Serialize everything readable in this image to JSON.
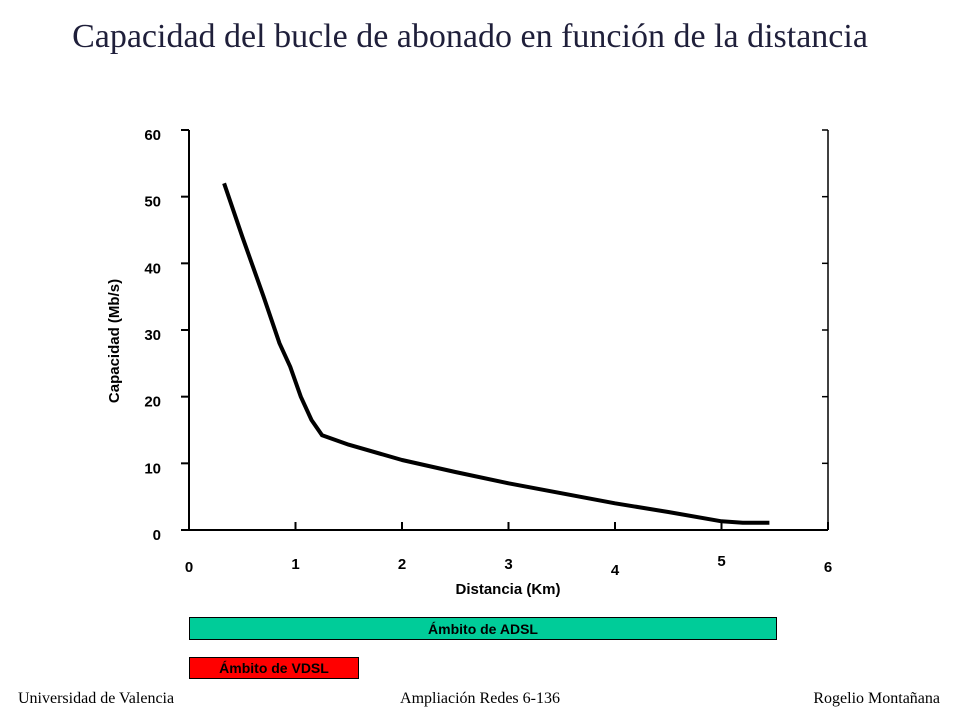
{
  "slide": {
    "title": "Capacidad del bucle de abonado en función de la distancia",
    "footer_left": "Universidad de Valencia",
    "footer_center": "Ampliación Redes 6-136",
    "footer_right": "Rogelio Montañana"
  },
  "colors": {
    "adsl_band": "#00cc99",
    "vdsl_band": "#ff0000",
    "line": "#000000"
  },
  "bands": [
    {
      "label": "Ámbito de ADSL",
      "range_km": [
        0,
        5.5
      ]
    },
    {
      "label": "Ámbito de VDSL",
      "range_km": [
        0,
        1.6
      ]
    }
  ],
  "chart_data": {
    "type": "line",
    "title": "",
    "xlabel": "Distancia (Km)",
    "ylabel": "Capacidad (Mb/s)",
    "xlim": [
      0,
      6
    ],
    "ylim": [
      0,
      60
    ],
    "xticks": [
      0,
      1,
      2,
      3,
      4,
      5,
      6
    ],
    "yticks": [
      0,
      10,
      20,
      30,
      40,
      50,
      60
    ],
    "grid": false,
    "series": [
      {
        "x": [
          0.33,
          0.5,
          0.7,
          0.85,
          0.95,
          1.05,
          1.15,
          1.25,
          1.5,
          2.0,
          2.5,
          3.0,
          3.5,
          4.0,
          4.5,
          5.0,
          5.2,
          5.45
        ],
        "y": [
          52,
          44,
          35,
          28,
          24.5,
          20,
          16.5,
          14.2,
          12.8,
          10.5,
          8.7,
          7.0,
          5.5,
          4.0,
          2.7,
          1.3,
          1.1,
          1.1
        ]
      }
    ]
  }
}
